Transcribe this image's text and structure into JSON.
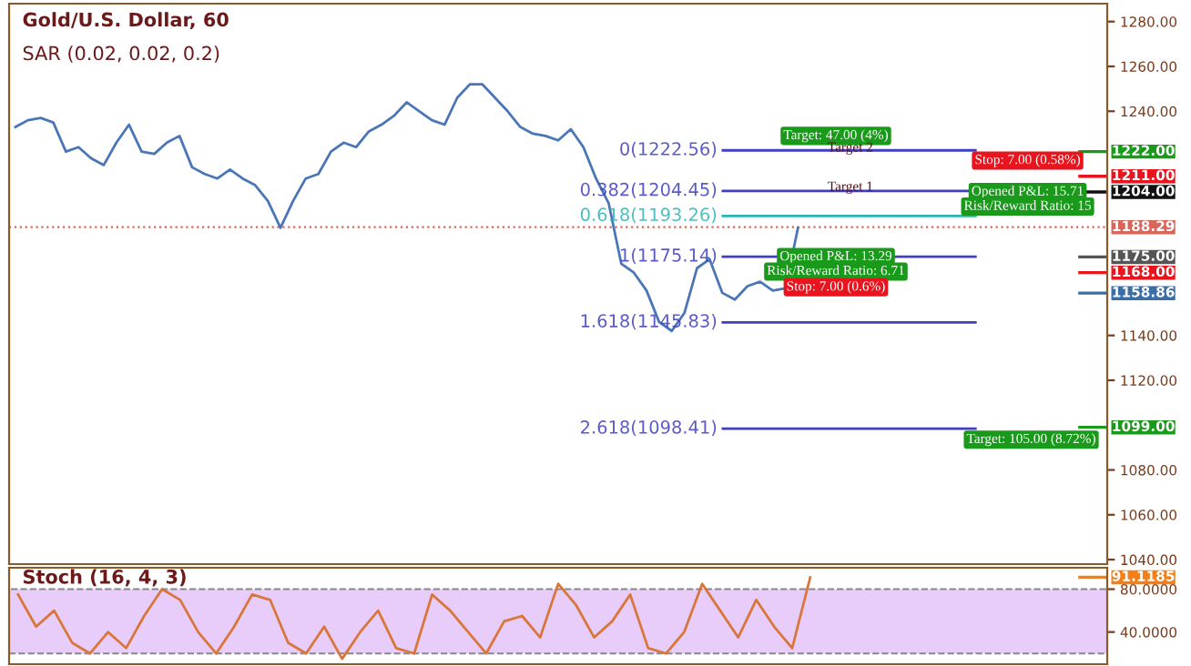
{
  "chart_data": [
    {
      "type": "line",
      "title": "Gold/U.S. Dollar, 60",
      "subtitle": "SAR (0.02, 0.02, 0.2)",
      "categories": [
        null,
        null,
        null,
        null,
        null,
        null,
        null,
        null,
        null,
        null,
        null,
        null,
        null,
        null,
        null,
        null,
        null,
        null,
        null,
        null,
        null,
        null,
        null,
        null,
        null,
        null,
        null,
        null,
        null,
        null,
        null,
        null,
        null,
        null,
        null,
        null,
        null,
        null,
        null,
        null,
        null,
        null,
        null,
        null,
        null,
        null,
        null,
        null,
        null,
        null,
        null,
        null,
        null,
        null,
        null,
        null,
        null,
        null,
        null,
        null,
        null,
        null,
        null,
        null,
        null,
        null,
        null,
        null,
        null,
        null,
        null,
        null,
        null,
        null,
        null,
        null,
        null,
        null,
        null,
        null,
        null,
        null,
        null,
        null,
        null,
        null,
        null
      ],
      "series": [
        {
          "color": "#4a76b8",
          "values": [
            1233,
            1236,
            1237,
            1235,
            1222,
            1224,
            1219,
            1216,
            1226,
            1234,
            1222,
            1221,
            1226,
            1229,
            1215,
            1212,
            1210,
            1214,
            1210,
            1207,
            1200,
            1188,
            1200,
            1210,
            1212,
            1222,
            1226,
            1224,
            1231,
            1234,
            1238,
            1244,
            1240,
            1236,
            1234,
            1246,
            1252,
            1252,
            1246,
            1240,
            1233,
            1230,
            1229,
            1227,
            1232,
            1224,
            1210,
            1199,
            1172,
            1168,
            1160,
            1146,
            1142,
            1150,
            1170,
            1174,
            1159,
            1156,
            1162,
            1164,
            1160,
            1161,
            1188,
            null,
            null,
            null,
            null,
            null,
            null,
            null,
            null,
            null,
            null,
            null,
            null,
            null,
            null,
            null,
            null,
            null,
            null,
            null,
            null,
            null,
            null,
            null,
            null
          ]
        }
      ],
      "ylim": [
        1038,
        1288
      ],
      "yticks": [
        {
          "value": 1040,
          "label": "1040.00"
        },
        {
          "value": 1060,
          "label": "1060.00"
        },
        {
          "value": 1080,
          "label": "1080.00"
        },
        {
          "value": 1120,
          "label": "1120.00"
        },
        {
          "value": 1140,
          "label": "1140.00"
        },
        {
          "value": 1240,
          "label": "1240.00"
        },
        {
          "value": 1260,
          "label": "1260.00"
        },
        {
          "value": 1280,
          "label": "1280.00"
        }
      ],
      "ref_lines": [
        {
          "axis": "y",
          "value": 1222.56,
          "label": "0(1222.56)",
          "color": "#3f3fbf",
          "line_style": "solid"
        },
        {
          "axis": "y",
          "value": 1204.45,
          "label": "0.382(1204.45)",
          "color": "#3f3fbf",
          "line_style": "solid"
        },
        {
          "axis": "y",
          "value": 1193.26,
          "label": "0.618(1193.26)",
          "color": "#2bb5b5",
          "line_style": "solid"
        },
        {
          "axis": "y",
          "value": 1175.14,
          "label": "1(1175.14)",
          "color": "#3f3fbf",
          "line_style": "solid"
        },
        {
          "axis": "y",
          "value": 1145.83,
          "label": "1.618(1145.83)",
          "color": "#3f3fbf",
          "line_style": "solid"
        },
        {
          "axis": "y",
          "value": 1098.41,
          "label": "2.618(1098.41)",
          "color": "#3f3fbf",
          "line_style": "solid"
        },
        {
          "axis": "y",
          "value": 1222,
          "label": "1222.00",
          "color": "#1a9a1a"
        },
        {
          "axis": "y",
          "value": 1211,
          "label": "1211.00",
          "color": "#e8141e"
        },
        {
          "axis": "y",
          "value": 1204,
          "label": "1204.00",
          "color": "#111111"
        },
        {
          "axis": "y",
          "value": 1188.29,
          "label": "1188.29",
          "color": "#d9665a",
          "line_style": "dotted"
        },
        {
          "axis": "y",
          "value": 1175,
          "label": "1175.00",
          "color": "#555555"
        },
        {
          "axis": "y",
          "value": 1168,
          "label": "1168.00",
          "color": "#e8141e"
        },
        {
          "axis": "y",
          "value": 1158.86,
          "label": "1158.86",
          "color": "#3a6ea8"
        },
        {
          "axis": "y",
          "value": 1099,
          "label": "1099.00",
          "color": "#1a9a1a"
        }
      ],
      "annotations": [
        "Target: 47.00 (4%)",
        "Target 2",
        "Target 1",
        "Opened P&L: 13.29",
        "Risk/Reward Ratio: 6.71",
        "Stop: 7.00 (0.6%)",
        "Stop: 7.00 (0.58%)",
        "Opened P&L: 15.71",
        "Risk/Reward Ratio: 15",
        "Target: 105.00 (8.72%)"
      ]
    },
    {
      "type": "line",
      "title": "Stoch (16, 4, 3)",
      "categories": [
        null,
        null,
        null,
        null,
        null,
        null,
        null,
        null,
        null,
        null,
        null,
        null,
        null,
        null,
        null,
        null,
        null,
        null,
        null,
        null,
        null,
        null,
        null,
        null,
        null,
        null,
        null,
        null,
        null,
        null,
        null,
        null,
        null,
        null,
        null,
        null,
        null,
        null,
        null,
        null,
        null,
        null,
        null,
        null,
        null,
        null,
        null,
        null,
        null,
        null,
        null,
        null,
        null,
        null,
        null,
        null,
        null,
        null,
        null,
        null,
        null
      ],
      "series": [
        {
          "color": "#d9773a",
          "values": [
            75,
            45,
            60,
            30,
            20,
            40,
            25,
            55,
            80,
            70,
            40,
            20,
            45,
            75,
            70,
            30,
            20,
            45,
            15,
            40,
            60,
            25,
            20,
            75,
            60,
            40,
            20,
            50,
            55,
            35,
            85,
            65,
            35,
            50,
            75,
            25,
            20,
            40,
            85,
            60,
            35,
            70,
            45,
            25,
            91,
            null,
            null,
            null,
            null,
            null,
            null,
            null,
            null,
            null,
            null,
            null,
            null,
            null,
            null,
            null,
            null
          ]
        }
      ],
      "ylim": [
        10,
        100
      ],
      "yticks": [
        {
          "value": 40,
          "label": "40.0000"
        },
        {
          "value": 80,
          "label": "80.0000"
        }
      ],
      "bands": [
        {
          "axis": "y",
          "from": 20,
          "to": 80,
          "color": "#e8ccfa"
        }
      ],
      "ref_lines": [
        {
          "axis": "y",
          "value": 91.1185,
          "label": "91.1185",
          "color": "#f57f17"
        }
      ]
    }
  ]
}
